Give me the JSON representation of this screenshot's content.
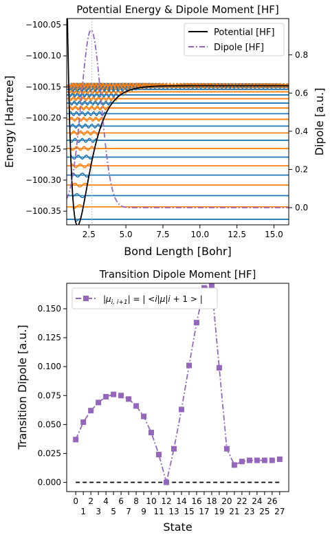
{
  "colors": {
    "potential": "#000000",
    "dipole": "#9467bd",
    "level_blue": "#1f77b4",
    "level_orange": "#ff7f0e",
    "transition": "#9467bd",
    "zero_line": "#000000"
  },
  "chart_data": [
    {
      "type": "line",
      "title": "Potential Energy & Dipole Moment [HF]",
      "xlabel": "Bond Length [Bohr]",
      "ylabel": "Energy [Hartree]",
      "y2label": "Dipole [a.u.]",
      "xlim": [
        1.0,
        16.0
      ],
      "ylim": [
        -100.372,
        -100.04
      ],
      "y2lim": [
        -0.09,
        0.99
      ],
      "xticks": [
        2.5,
        5.0,
        7.5,
        10.0,
        12.5,
        15.0
      ],
      "xtick_labels": [
        "2.5",
        "5.0",
        "7.5",
        "10.0",
        "12.5",
        "15.0"
      ],
      "yticks": [
        -100.35,
        -100.3,
        -100.25,
        -100.2,
        -100.15,
        -100.1,
        -100.05
      ],
      "ytick_labels": [
        "−100.35",
        "−100.30",
        "−100.25",
        "−100.20",
        "−100.15",
        "−100.10",
        "−100.05"
      ],
      "y2ticks": [
        0.0,
        0.2,
        0.4,
        0.6,
        0.8
      ],
      "y2tick_labels": [
        "0.0",
        "0.2",
        "0.4",
        "0.6",
        "0.8"
      ],
      "legend_location": "top-right",
      "legend": [
        "Potential [HF]",
        "Dipole [HF]"
      ],
      "potential": {
        "De": 0.225,
        "re": 1.73,
        "a": 1.17,
        "asymptote": -100.148
      },
      "dipole": {
        "peak_x": 2.65,
        "peak_value": 0.93,
        "width": 0.95,
        "tail_start": 6.0,
        "tail_value": 0.0
      },
      "vertical_line_x": 2.7,
      "vib_levels": [
        -100.363,
        -100.343,
        -100.325,
        -100.308,
        -100.292,
        -100.277,
        -100.263,
        -100.249,
        -100.236,
        -100.224,
        -100.213,
        -100.202,
        -100.193,
        -100.184,
        -100.176,
        -100.169,
        -100.163,
        -100.158,
        -100.154,
        -100.151,
        -100.1495,
        -100.1485,
        -100.148,
        -100.1478,
        -100.1476,
        -100.1475,
        -100.1474,
        -100.1473
      ]
    },
    {
      "type": "line",
      "title": "Transition Dipole Moment [HF]",
      "xlabel": "State",
      "ylabel": "Transition Dipole [a.u.]",
      "legend_location": "top-left",
      "legend": [
        "|μ_{i,i+1}| = |<i|μ|i+1>|"
      ],
      "xlim": [
        -1.2,
        28.2
      ],
      "ylim": [
        -0.008,
        0.172
      ],
      "x": [
        0,
        1,
        2,
        3,
        4,
        5,
        6,
        7,
        8,
        9,
        10,
        11,
        12,
        13,
        14,
        15,
        16,
        17,
        18,
        19,
        20,
        21,
        22,
        23,
        24,
        25,
        26,
        27
      ],
      "xtick_labels": [
        "0",
        "1",
        "2",
        "3",
        "4",
        "5",
        "6",
        "7",
        "8",
        "9",
        "10",
        "11",
        "12",
        "13",
        "14",
        "15",
        "16",
        "17",
        "18",
        "19",
        "20",
        "21",
        "22",
        "23",
        "24",
        "25",
        "26",
        "27"
      ],
      "values": [
        0.037,
        0.052,
        0.062,
        0.069,
        0.074,
        0.076,
        0.075,
        0.072,
        0.066,
        0.057,
        0.043,
        0.024,
        0.0,
        0.029,
        0.063,
        0.101,
        0.138,
        0.168,
        0.17,
        0.099,
        0.029,
        0.015,
        0.018,
        0.019,
        0.019,
        0.019,
        0.019,
        0.02
      ],
      "yticks": [
        0.0,
        0.025,
        0.05,
        0.075,
        0.1,
        0.125,
        0.15
      ],
      "ytick_labels": [
        "0.000",
        "0.025",
        "0.050",
        "0.075",
        "0.100",
        "0.125",
        "0.150"
      ],
      "zero_line": 0.0
    }
  ]
}
